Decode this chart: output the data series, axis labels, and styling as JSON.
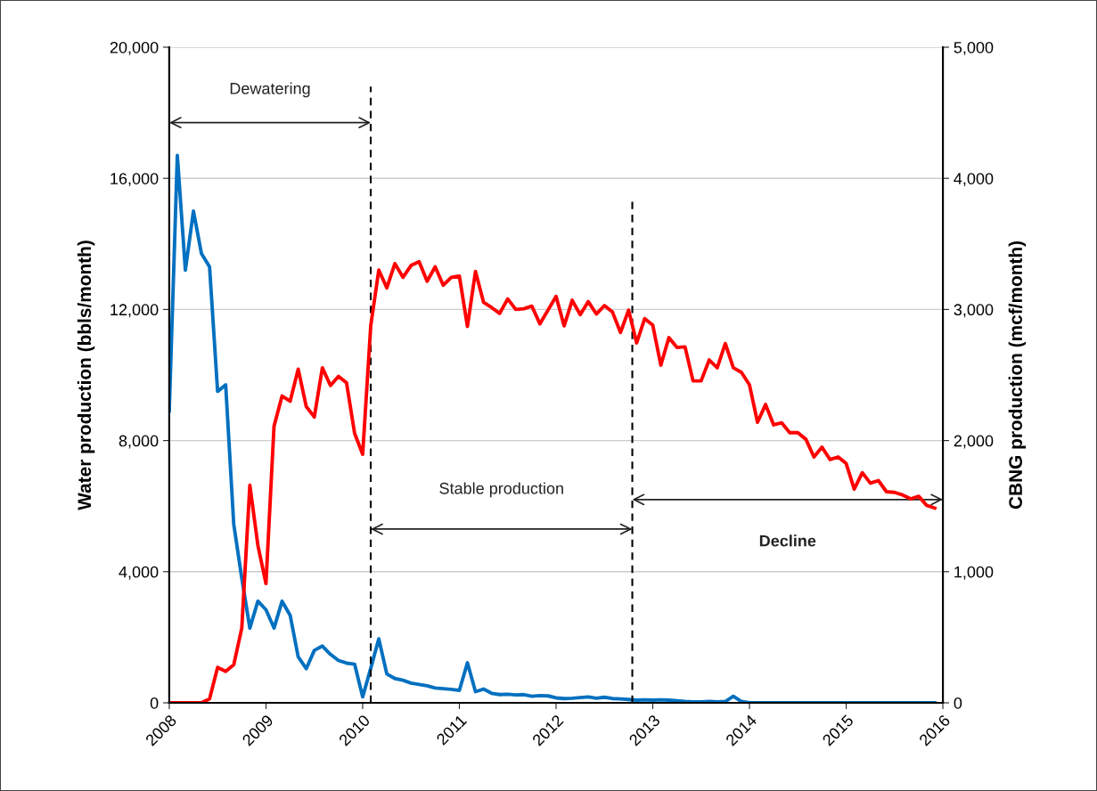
{
  "chart_data": {
    "type": "line",
    "x": [
      "2008-01",
      "2008-02",
      "2008-03",
      "2008-04",
      "2008-05",
      "2008-06",
      "2008-07",
      "2008-08",
      "2008-09",
      "2008-10",
      "2008-11",
      "2008-12",
      "2009-01",
      "2009-02",
      "2009-03",
      "2009-04",
      "2009-05",
      "2009-06",
      "2009-07",
      "2009-08",
      "2009-09",
      "2009-10",
      "2009-11",
      "2009-12",
      "2010-01",
      "2010-02",
      "2010-03",
      "2010-04",
      "2010-05",
      "2010-06",
      "2010-07",
      "2010-08",
      "2010-09",
      "2010-10",
      "2010-11",
      "2010-12",
      "2011-01",
      "2011-02",
      "2011-03",
      "2011-04",
      "2011-05",
      "2011-06",
      "2011-07",
      "2011-08",
      "2011-09",
      "2011-10",
      "2011-11",
      "2011-12",
      "2012-01",
      "2012-02",
      "2012-03",
      "2012-04",
      "2012-05",
      "2012-06",
      "2012-07",
      "2012-08",
      "2012-09",
      "2012-10",
      "2012-11",
      "2012-12",
      "2013-01",
      "2013-02",
      "2013-03",
      "2013-04",
      "2013-05",
      "2013-06",
      "2013-07",
      "2013-08",
      "2013-09",
      "2013-10",
      "2013-11",
      "2013-12",
      "2014-01",
      "2014-02",
      "2014-03",
      "2014-04",
      "2014-05",
      "2014-06",
      "2014-07",
      "2014-08",
      "2014-09",
      "2014-10",
      "2014-11",
      "2014-12",
      "2015-01",
      "2015-02",
      "2015-03",
      "2015-04",
      "2015-05",
      "2015-06",
      "2015-07",
      "2015-08",
      "2015-09",
      "2015-10",
      "2015-11",
      "2015-12"
    ],
    "series": [
      {
        "color": "#0070c0",
        "values": [
          8900,
          16700,
          13200,
          15000,
          13700,
          13300,
          9500,
          9700,
          5450,
          3800,
          2280,
          3100,
          2840,
          2280,
          3100,
          2670,
          1400,
          1040,
          1600,
          1730,
          1480,
          1290,
          1210,
          1180,
          180,
          1050,
          1950,
          880,
          740,
          690,
          600,
          560,
          520,
          450,
          430,
          410,
          380,
          1220,
          340,
          420,
          290,
          250,
          260,
          240,
          250,
          200,
          220,
          210,
          150,
          130,
          140,
          160,
          180,
          140,
          170,
          130,
          120,
          100,
          80,
          90,
          80,
          90,
          80,
          60,
          40,
          30,
          30,
          40,
          30,
          40,
          200,
          40,
          0,
          0,
          0,
          0,
          0,
          0,
          0,
          0,
          0,
          0,
          0,
          0,
          0,
          0,
          0,
          0,
          0,
          0,
          0,
          0,
          0,
          0,
          0,
          0
        ]
      },
      {
        "color": "#ff0000",
        "axis": "y2",
        "values": [
          0,
          0,
          0,
          0,
          0,
          30,
          270,
          240,
          290,
          570,
          1660,
          1200,
          910,
          2110,
          2340,
          2300,
          2545,
          2260,
          2180,
          2555,
          2420,
          2490,
          2440,
          2055,
          1895,
          2875,
          3300,
          3165,
          3350,
          3245,
          3335,
          3365,
          3215,
          3325,
          3185,
          3245,
          3255,
          2870,
          3290,
          3055,
          3015,
          2970,
          3080,
          3000,
          3005,
          3025,
          2890,
          2995,
          3100,
          2875,
          3070,
          2960,
          3060,
          2965,
          3030,
          2980,
          2825,
          2995,
          2745,
          2930,
          2880,
          2575,
          2785,
          2710,
          2715,
          2455,
          2455,
          2615,
          2555,
          2740,
          2555,
          2520,
          2425,
          2140,
          2275,
          2120,
          2135,
          2060,
          2060,
          2010,
          1875,
          1950,
          1855,
          1875,
          1825,
          1630,
          1755,
          1675,
          1695,
          1610,
          1605,
          1585,
          1555,
          1575,
          1505,
          1485
        ]
      }
    ],
    "xlim": [
      "2008-01",
      "2016-01"
    ],
    "xticks": [
      "2008",
      "2009",
      "2010",
      "2011",
      "2012",
      "2013",
      "2014",
      "2015",
      "2016"
    ],
    "ylim": [
      0,
      20000
    ],
    "yticks": [
      {
        "value": 0,
        "label": "0"
      },
      {
        "value": 4000,
        "label": "4,000"
      },
      {
        "value": 8000,
        "label": "8,000"
      },
      {
        "value": 12000,
        "label": "12,000"
      },
      {
        "value": 16000,
        "label": "16,000"
      },
      {
        "value": 20000,
        "label": "20,000"
      }
    ],
    "y2lim": [
      0,
      5000
    ],
    "y2ticks": [
      {
        "value": 0,
        "label": "0"
      },
      {
        "value": 1000,
        "label": "1,000"
      },
      {
        "value": 2000,
        "label": "2,000"
      },
      {
        "value": 3000,
        "label": "3,000"
      },
      {
        "value": 4000,
        "label": "4,000"
      },
      {
        "value": 5000,
        "label": "5,000"
      }
    ],
    "ylabel": "Water production (bbls/month)",
    "y2label": "CBNG production (mcf/month)",
    "grid": "y",
    "marker": "none",
    "line_style": "solid",
    "legend": false,
    "ref_lines": [
      {
        "axis": "x",
        "value": "2010-02",
        "color": "#000000",
        "line_style": "dashed"
      },
      {
        "axis": "x",
        "value": "2012-10-15",
        "color": "#000000",
        "line_style": "dashed"
      }
    ],
    "annotations": [
      "Dewatering",
      "Stable production",
      "Decline"
    ]
  }
}
